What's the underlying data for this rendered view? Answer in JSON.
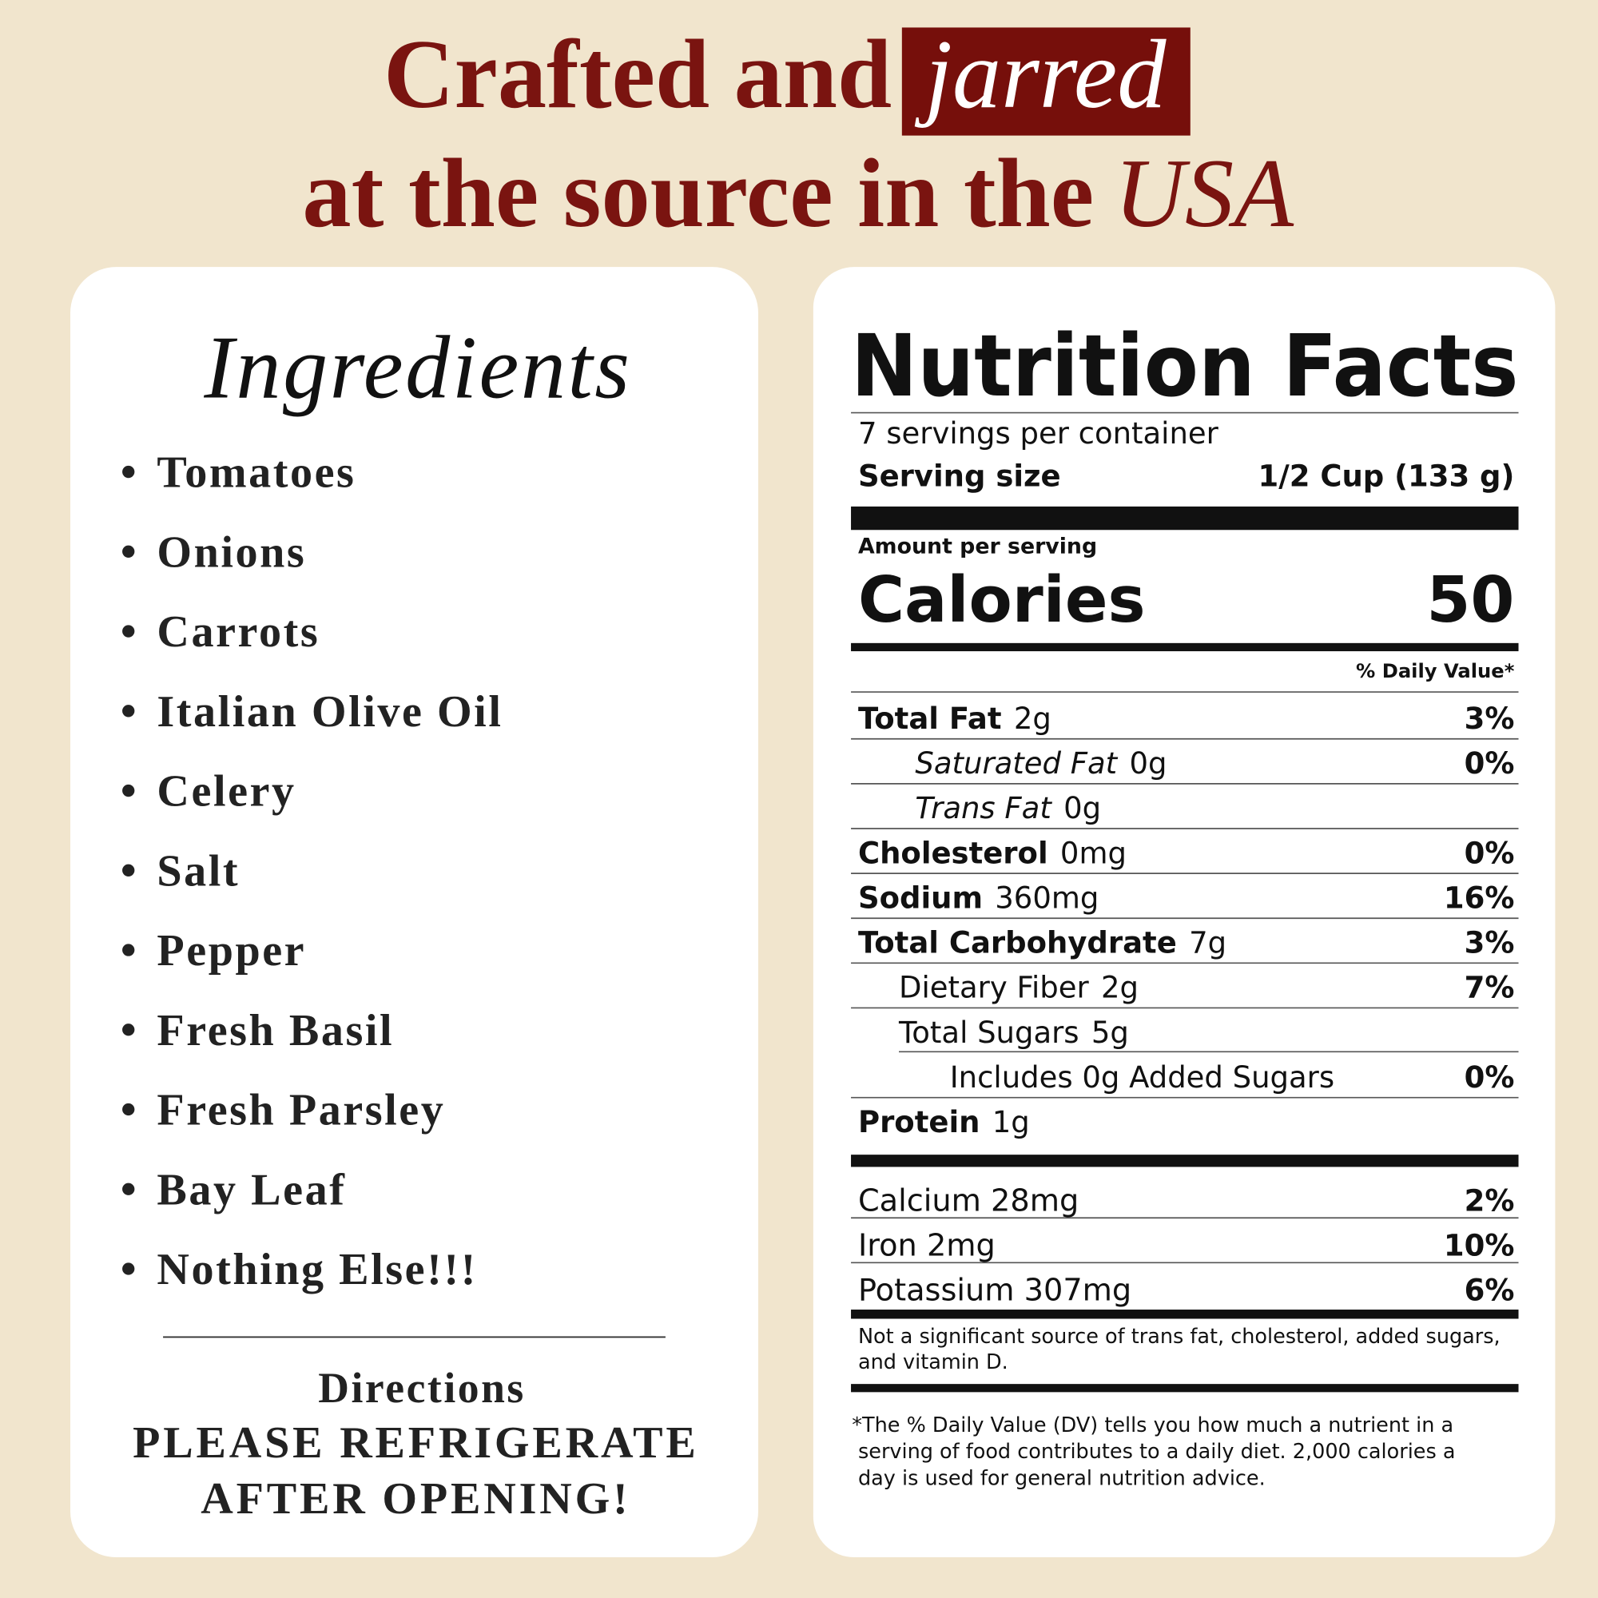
{
  "header": {
    "line1": "Crafted and",
    "highlight": "jarred",
    "line2": "at the source in the",
    "line2_italic": "USA"
  },
  "ingredients": {
    "title": "Ingredients",
    "items": [
      "Tomatoes",
      "Onions",
      "Carrots",
      "Italian Olive Oil",
      "Celery",
      "Salt",
      "Pepper",
      "Fresh Basil",
      "Fresh Parsley",
      "Bay Leaf",
      "Nothing Else!!!"
    ]
  },
  "directions": {
    "title": "Directions",
    "lines": [
      "PLEASE REFRIGERATE",
      "AFTER OPENING!"
    ]
  },
  "nutrition": {
    "title": "Nutrition Facts",
    "servings": "7 servings per container",
    "serving_size_label": "Serving size",
    "serving_size": "1/2 Cup (133 g)",
    "amount_per_serving": "Amount per serving",
    "calories_label": "Calories",
    "calories": 50,
    "daily_value_header": "% Daily Value*",
    "rows": [
      {
        "name": "Total Fat",
        "amount": "2g",
        "dv": "3%"
      },
      {
        "name": "Saturated Fat",
        "amount": "0g",
        "dv": "0%"
      },
      {
        "name": "Trans Fat",
        "amount": "0g"
      },
      {
        "name": "Cholesterol",
        "amount": "0mg",
        "dv": "0%"
      },
      {
        "name": "Sodium",
        "amount": "360mg",
        "dv": "16%"
      },
      {
        "name": "Total Carbohydrate",
        "amount": "7g",
        "dv": "3%"
      },
      {
        "name": "Dietary Fiber",
        "amount": "2g",
        "dv": "7%"
      },
      {
        "name": "Total Sugars",
        "amount": "5g"
      },
      {
        "name": "Includes 0g Added Sugars",
        "dv": "0%"
      },
      {
        "name": "Protein",
        "amount": "1g"
      }
    ],
    "vitamins": [
      {
        "name": "Calcium 28mg",
        "dv": "2%"
      },
      {
        "name": "Iron 2mg",
        "dv": "10%"
      },
      {
        "name": "Potassium 307mg",
        "dv": "6%"
      }
    ],
    "footnote1": [
      "Not a significant source of trans fat, cholesterol, added sugars,",
      "and vitamin D."
    ],
    "footnote2": [
      "*The % Daily Value (DV) tells you how much a nutrient in a",
      "serving of food contributes to a daily diet. 2,000 calories a",
      "day is used for general nutrition advice."
    ]
  }
}
